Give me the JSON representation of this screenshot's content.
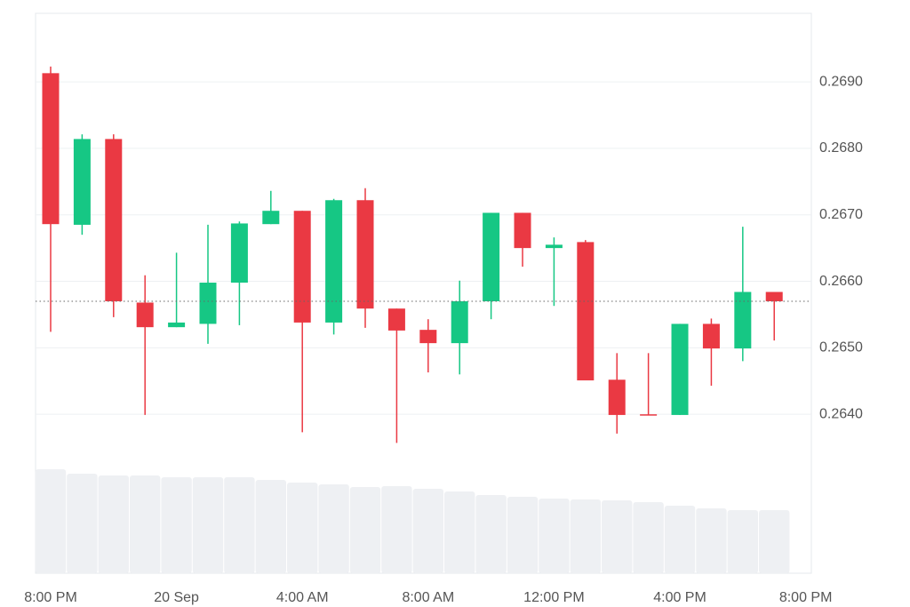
{
  "chart_data": {
    "type": "candlestick",
    "x": [
      0,
      1,
      2,
      3,
      4,
      5,
      6,
      7,
      8,
      9,
      10,
      11,
      12,
      13,
      14,
      15,
      16,
      17,
      18,
      19,
      20,
      21,
      22,
      23
    ],
    "open": [
      0.26913,
      0.26685,
      0.26814,
      0.26568,
      0.26531,
      0.26536,
      0.26598,
      0.26686,
      0.26706,
      0.26538,
      0.26722,
      0.26559,
      0.26527,
      0.26507,
      0.2657,
      0.26703,
      0.2665,
      0.26659,
      0.26452,
      0.264,
      0.26399,
      0.26536,
      0.26499,
      0.26584
    ],
    "high": [
      0.26923,
      0.26821,
      0.26821,
      0.26609,
      0.26643,
      0.26685,
      0.2669,
      0.26736,
      0.26706,
      0.26724,
      0.2674,
      0.26559,
      0.26543,
      0.26601,
      0.26703,
      0.26703,
      0.26666,
      0.26662,
      0.26492,
      0.26492,
      0.26536,
      0.26544,
      0.26682,
      0.26584
    ],
    "low": [
      0.26524,
      0.2667,
      0.26546,
      0.26399,
      0.26531,
      0.26506,
      0.26534,
      0.26686,
      0.26373,
      0.2652,
      0.2653,
      0.26357,
      0.26463,
      0.2646,
      0.26543,
      0.26622,
      0.26563,
      0.26451,
      0.26371,
      0.26399,
      0.26399,
      0.26443,
      0.2648,
      0.26511
    ],
    "close": [
      0.26686,
      0.26814,
      0.2657,
      0.26531,
      0.26538,
      0.26598,
      0.26687,
      0.26706,
      0.26538,
      0.26722,
      0.26559,
      0.26526,
      0.26507,
      0.2657,
      0.26703,
      0.2665,
      0.26655,
      0.26451,
      0.26399,
      0.26399,
      0.26536,
      0.26499,
      0.26584,
      0.2657
    ],
    "volume": [
      117,
      112,
      110,
      110,
      108,
      108,
      108,
      105,
      102,
      100,
      97,
      98,
      95,
      92,
      88,
      86,
      84,
      83,
      82,
      80,
      76,
      73,
      71,
      71
    ],
    "volume_ylim": [
      0,
      630
    ],
    "volume_color": "#eef0f3",
    "up_color": "#16c784",
    "down_color": "#ea3943",
    "last_price": 0.2657,
    "xlim": [
      -0.48,
      24.18
    ],
    "ylim": [
      0.26161,
      0.27003
    ],
    "yticks": [
      {
        "value": 0.264,
        "label": "0.2640"
      },
      {
        "value": 0.265,
        "label": "0.2650"
      },
      {
        "value": 0.266,
        "label": "0.2660"
      },
      {
        "value": 0.267,
        "label": "0.2670"
      },
      {
        "value": 0.268,
        "label": "0.2680"
      },
      {
        "value": 0.269,
        "label": "0.2690"
      }
    ],
    "xticks": [
      {
        "value": 0,
        "label": "8:00 PM"
      },
      {
        "value": 4,
        "label": "20 Sep"
      },
      {
        "value": 8,
        "label": "4:00 AM"
      },
      {
        "value": 12,
        "label": "8:00 AM"
      },
      {
        "value": 16,
        "label": "12:00 PM"
      },
      {
        "value": 20,
        "label": "4:00 PM"
      },
      {
        "value": 24,
        "label": "8:00 PM"
      }
    ],
    "grid": true
  }
}
